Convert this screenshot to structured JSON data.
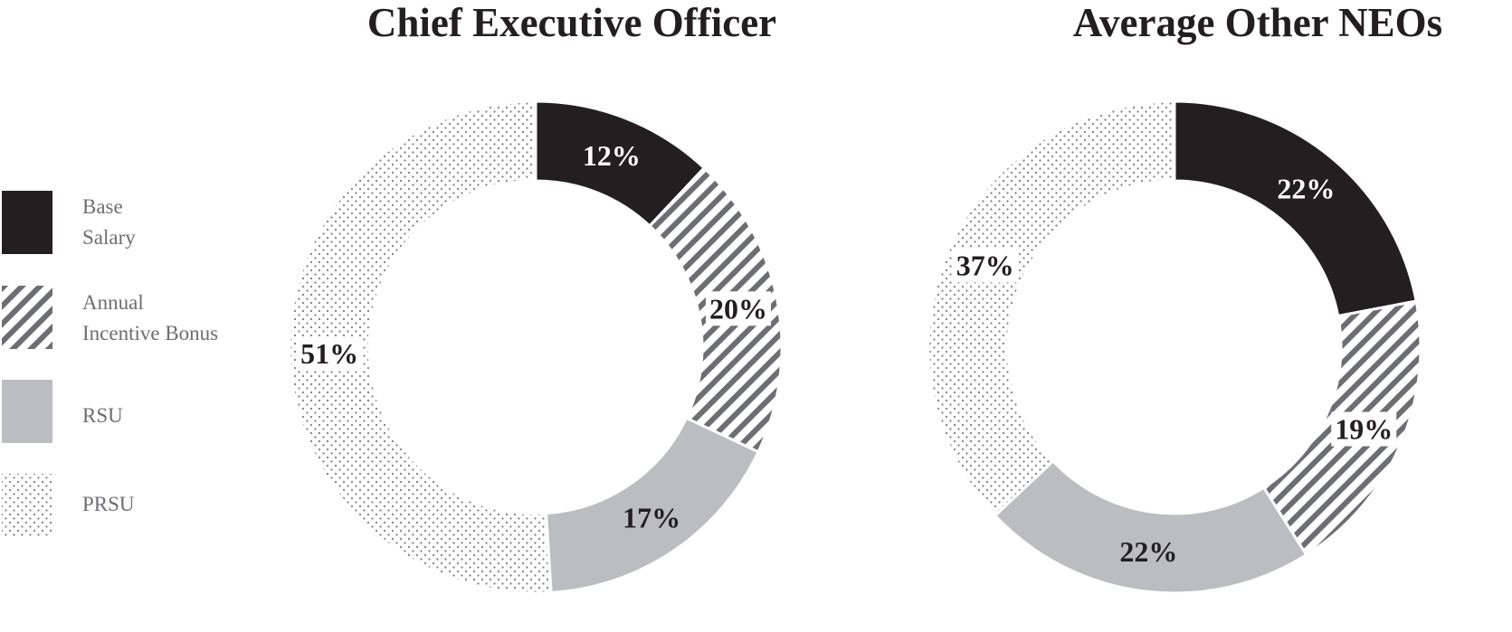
{
  "chart_data": [
    {
      "type": "pie",
      "title": "Chief Executive Officer",
      "categories": [
        "Base Salary",
        "Annual Incentive Bonus",
        "RSU",
        "PRSU"
      ],
      "values": [
        12,
        20,
        17,
        51
      ],
      "labels": [
        "12%",
        "20%",
        "17%",
        "51%"
      ]
    },
    {
      "type": "pie",
      "title": "Average Other NEOs",
      "categories": [
        "Base Salary",
        "Annual Incentive Bonus",
        "RSU",
        "PRSU"
      ],
      "values": [
        22,
        19,
        22,
        37
      ],
      "labels": [
        "22%",
        "19%",
        "22%",
        "37%"
      ]
    }
  ],
  "legend": [
    {
      "key": "base",
      "lines": [
        "Base",
        "Salary"
      ]
    },
    {
      "key": "bonus",
      "lines": [
        "Annual",
        "Incentive Bonus"
      ]
    },
    {
      "key": "rsu",
      "lines": [
        "RSU"
      ]
    },
    {
      "key": "prsu",
      "lines": [
        "PRSU"
      ]
    }
  ],
  "colors": {
    "base": "#231f20",
    "stripe": "#6d6e71",
    "rsu": "#bcbdc0",
    "dots": "#7a7b7e",
    "label_dark": "#231f20",
    "label_light": "#ffffff"
  }
}
